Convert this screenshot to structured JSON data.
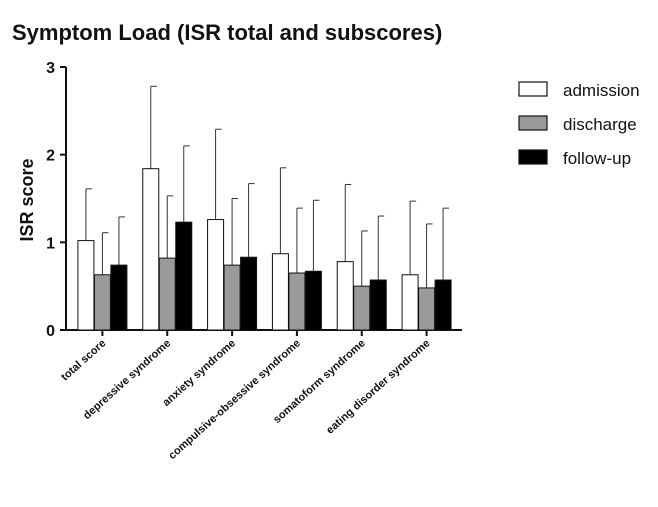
{
  "chart_data": {
    "type": "bar",
    "title": "Symptom Load (ISR total and subscores)",
    "ylabel": "ISR score",
    "xlabel": "",
    "ylim": [
      0,
      3
    ],
    "yticks": [
      "0",
      "1",
      "2",
      "3"
    ],
    "grid": false,
    "legend_position": "right",
    "categories": [
      "total score",
      "depressive syndrome",
      "anxiety syndrome",
      "compulsive-obsessive syndrome",
      "somatoform syndrome",
      "eating disorder syndrome"
    ],
    "series": [
      {
        "name": "admission",
        "color": "#ffffff",
        "values": [
          1.02,
          1.84,
          1.26,
          0.87,
          0.78,
          0.63
        ],
        "error": [
          0.59,
          0.94,
          1.03,
          0.98,
          0.88,
          0.84
        ]
      },
      {
        "name": "discharge",
        "color": "#9a9a9a",
        "values": [
          0.63,
          0.82,
          0.74,
          0.65,
          0.5,
          0.48
        ],
        "error": [
          0.48,
          0.71,
          0.76,
          0.74,
          0.63,
          0.73
        ]
      },
      {
        "name": "follow-up",
        "color": "#000000",
        "values": [
          0.74,
          1.23,
          0.83,
          0.67,
          0.57,
          0.57
        ],
        "error": [
          0.55,
          0.87,
          0.84,
          0.81,
          0.73,
          0.82
        ]
      }
    ]
  }
}
